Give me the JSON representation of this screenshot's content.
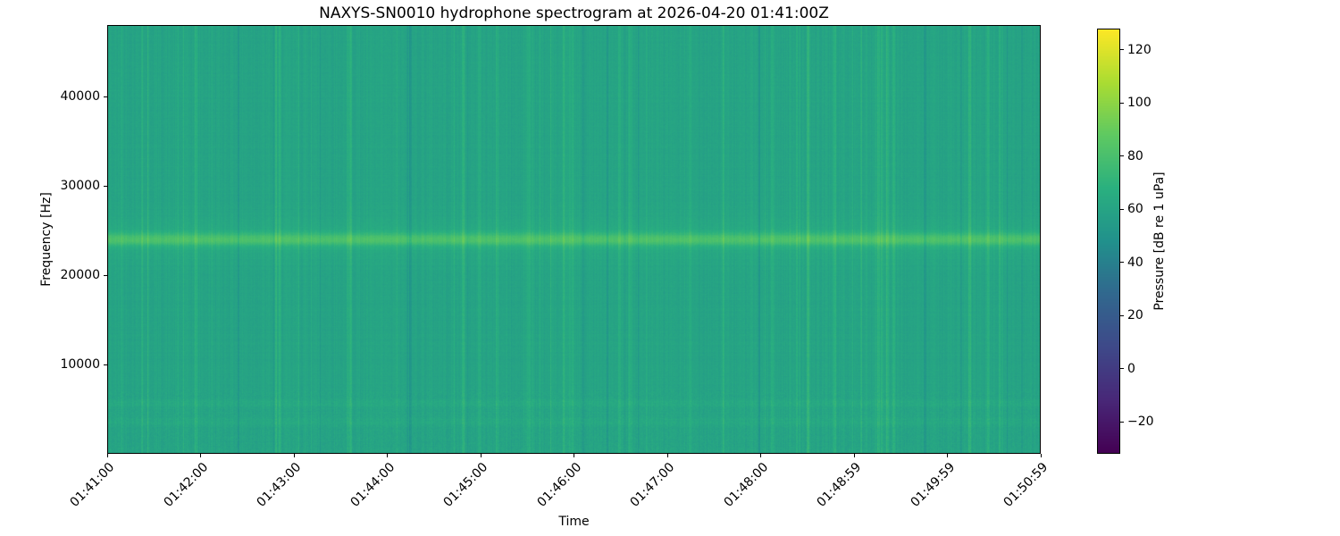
{
  "chart_data": {
    "type": "heatmap",
    "title": "NAXYS-SN0010 hydrophone spectrogram at 2026-04-20 01:41:00Z",
    "xlabel": "Time",
    "ylabel": "Frequency [Hz]",
    "x_tick_labels": [
      "01:41:00",
      "01:42:00",
      "01:43:00",
      "01:44:00",
      "01:45:00",
      "01:46:00",
      "01:47:00",
      "01:48:00",
      "01:48:59",
      "01:49:59",
      "01:50:59"
    ],
    "y_tick_labels": [
      "10000",
      "20000",
      "30000",
      "40000"
    ],
    "y_tick_values": [
      10000,
      20000,
      30000,
      40000
    ],
    "y_range_hz": [
      0,
      48000
    ],
    "colormap": "viridis",
    "grid": false,
    "legend": "none",
    "colorbar": {
      "label": "Pressure [dB re 1 uPa]",
      "tick_labels": [
        "120",
        "100",
        "80",
        "60",
        "40",
        "20",
        "0",
        "−20"
      ],
      "tick_values": [
        120,
        100,
        80,
        60,
        40,
        20,
        0,
        -20
      ],
      "vmin": -32,
      "vmax": 128
    },
    "content_summary": {
      "background_level_db": 60,
      "vertical_stripe_variation_db": 10,
      "tonal_band_hz": 24000,
      "tonal_band_peak_db_above_background": 18,
      "low_frequency_texture_below_hz": 7000,
      "faint_bands_hz": [
        3500,
        5600
      ],
      "noise_seed": 42
    }
  }
}
